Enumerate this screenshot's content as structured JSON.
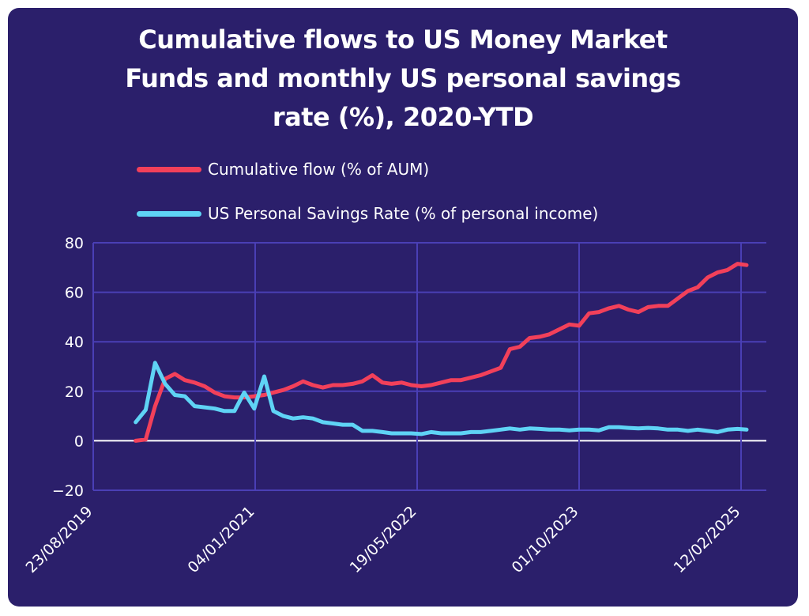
{
  "chart_data": {
    "type": "line",
    "title_lines": [
      "Cumulative flows to US Money Market",
      "Funds and monthly US personal savings",
      "rate (%), 2020-YTD"
    ],
    "xlabel": "",
    "ylabel": "",
    "ylim": [
      -20,
      80
    ],
    "yticks": [
      -20,
      0,
      20,
      40,
      60,
      80
    ],
    "x_axis_type": "date",
    "xlim": [
      "2019-08-23",
      "2025-05-01"
    ],
    "xticks": [
      {
        "date": "2019-08-23",
        "label": "23/08/2019"
      },
      {
        "date": "2021-01-04",
        "label": "04/01/2021"
      },
      {
        "date": "2022-05-19",
        "label": "19/05/2022"
      },
      {
        "date": "2023-10-01",
        "label": "01/10/2023"
      },
      {
        "date": "2025-02-12",
        "label": "12/02/2025"
      }
    ],
    "grid": true,
    "legend_placement": "top",
    "series": [
      {
        "name": "Cumulative flow (% of AUM)",
        "color": "#f2405a",
        "points": [
          [
            "2020-01-01",
            0
          ],
          [
            "2020-02-01",
            0.5
          ],
          [
            "2020-03-01",
            14
          ],
          [
            "2020-04-01",
            25
          ],
          [
            "2020-05-01",
            27
          ],
          [
            "2020-06-01",
            24.5
          ],
          [
            "2020-07-01",
            23.5
          ],
          [
            "2020-08-01",
            22
          ],
          [
            "2020-09-01",
            19.5
          ],
          [
            "2020-10-01",
            18
          ],
          [
            "2020-11-01",
            17.5
          ],
          [
            "2020-12-01",
            17.5
          ],
          [
            "2021-01-01",
            18
          ],
          [
            "2021-02-01",
            18.5
          ],
          [
            "2021-03-01",
            19.5
          ],
          [
            "2021-04-01",
            20.5
          ],
          [
            "2021-05-01",
            22
          ],
          [
            "2021-06-01",
            24
          ],
          [
            "2021-07-01",
            22.5
          ],
          [
            "2021-08-01",
            21.5
          ],
          [
            "2021-09-01",
            22.5
          ],
          [
            "2021-10-01",
            22.5
          ],
          [
            "2021-11-01",
            23
          ],
          [
            "2021-12-01",
            24
          ],
          [
            "2022-01-01",
            26.5
          ],
          [
            "2022-02-01",
            23.5
          ],
          [
            "2022-03-01",
            23
          ],
          [
            "2022-04-01",
            23.5
          ],
          [
            "2022-05-01",
            22.5
          ],
          [
            "2022-06-01",
            22
          ],
          [
            "2022-07-01",
            22.5
          ],
          [
            "2022-08-01",
            23.5
          ],
          [
            "2022-09-01",
            24.5
          ],
          [
            "2022-10-01",
            24.5
          ],
          [
            "2022-11-01",
            25.5
          ],
          [
            "2022-12-01",
            26.5
          ],
          [
            "2023-01-01",
            28
          ],
          [
            "2023-02-01",
            29.5
          ],
          [
            "2023-03-01",
            37
          ],
          [
            "2023-04-01",
            38
          ],
          [
            "2023-05-01",
            41.5
          ],
          [
            "2023-06-01",
            42
          ],
          [
            "2023-07-01",
            43
          ],
          [
            "2023-08-01",
            45
          ],
          [
            "2023-09-01",
            47
          ],
          [
            "2023-10-01",
            46.5
          ],
          [
            "2023-11-01",
            51.5
          ],
          [
            "2023-12-01",
            52
          ],
          [
            "2024-01-01",
            53.5
          ],
          [
            "2024-02-01",
            54.5
          ],
          [
            "2024-03-01",
            53
          ],
          [
            "2024-04-01",
            52
          ],
          [
            "2024-05-01",
            54
          ],
          [
            "2024-06-01",
            54.5
          ],
          [
            "2024-07-01",
            54.5
          ],
          [
            "2024-08-01",
            57.5
          ],
          [
            "2024-09-01",
            60.5
          ],
          [
            "2024-10-01",
            62
          ],
          [
            "2024-11-01",
            66
          ],
          [
            "2024-12-01",
            68
          ],
          [
            "2025-01-01",
            69
          ],
          [
            "2025-02-01",
            71.5
          ],
          [
            "2025-03-01",
            71
          ]
        ]
      },
      {
        "name": "US Personal Savings Rate (% of personal income)",
        "color": "#5fd3f5",
        "points": [
          [
            "2020-01-01",
            7.5
          ],
          [
            "2020-02-01",
            12.5
          ],
          [
            "2020-03-01",
            31.5
          ],
          [
            "2020-04-01",
            23
          ],
          [
            "2020-05-01",
            18.5
          ],
          [
            "2020-06-01",
            18
          ],
          [
            "2020-07-01",
            14
          ],
          [
            "2020-08-01",
            13.5
          ],
          [
            "2020-09-01",
            13
          ],
          [
            "2020-10-01",
            12
          ],
          [
            "2020-11-01",
            12
          ],
          [
            "2020-12-01",
            19.5
          ],
          [
            "2021-01-01",
            13
          ],
          [
            "2021-02-01",
            26
          ],
          [
            "2021-03-01",
            12
          ],
          [
            "2021-04-01",
            10
          ],
          [
            "2021-05-01",
            9
          ],
          [
            "2021-06-01",
            9.5
          ],
          [
            "2021-07-01",
            9
          ],
          [
            "2021-08-01",
            7.5
          ],
          [
            "2021-09-01",
            7
          ],
          [
            "2021-10-01",
            6.5
          ],
          [
            "2021-11-01",
            6.5
          ],
          [
            "2021-12-01",
            4
          ],
          [
            "2022-01-01",
            4
          ],
          [
            "2022-02-01",
            3.5
          ],
          [
            "2022-03-01",
            3
          ],
          [
            "2022-04-01",
            3
          ],
          [
            "2022-05-01",
            3
          ],
          [
            "2022-06-01",
            2.7
          ],
          [
            "2022-07-01",
            3.5
          ],
          [
            "2022-08-01",
            3
          ],
          [
            "2022-09-01",
            3
          ],
          [
            "2022-10-01",
            3
          ],
          [
            "2022-11-01",
            3.5
          ],
          [
            "2022-12-01",
            3.5
          ],
          [
            "2023-01-01",
            4
          ],
          [
            "2023-02-01",
            4.5
          ],
          [
            "2023-03-01",
            5
          ],
          [
            "2023-04-01",
            4.5
          ],
          [
            "2023-05-01",
            5
          ],
          [
            "2023-06-01",
            4.8
          ],
          [
            "2023-07-01",
            4.5
          ],
          [
            "2023-08-01",
            4.5
          ],
          [
            "2023-09-01",
            4.2
          ],
          [
            "2023-10-01",
            4.5
          ],
          [
            "2023-11-01",
            4.5
          ],
          [
            "2023-12-01",
            4.2
          ],
          [
            "2024-01-01",
            5.5
          ],
          [
            "2024-02-01",
            5.5
          ],
          [
            "2024-03-01",
            5.2
          ],
          [
            "2024-04-01",
            5
          ],
          [
            "2024-05-01",
            5.2
          ],
          [
            "2024-06-01",
            5
          ],
          [
            "2024-07-01",
            4.5
          ],
          [
            "2024-08-01",
            4.5
          ],
          [
            "2024-09-01",
            4
          ],
          [
            "2024-10-01",
            4.5
          ],
          [
            "2024-11-01",
            4
          ],
          [
            "2024-12-01",
            3.5
          ],
          [
            "2025-01-01",
            4.5
          ],
          [
            "2025-02-01",
            4.8
          ],
          [
            "2025-03-01",
            4.5
          ]
        ]
      }
    ]
  }
}
